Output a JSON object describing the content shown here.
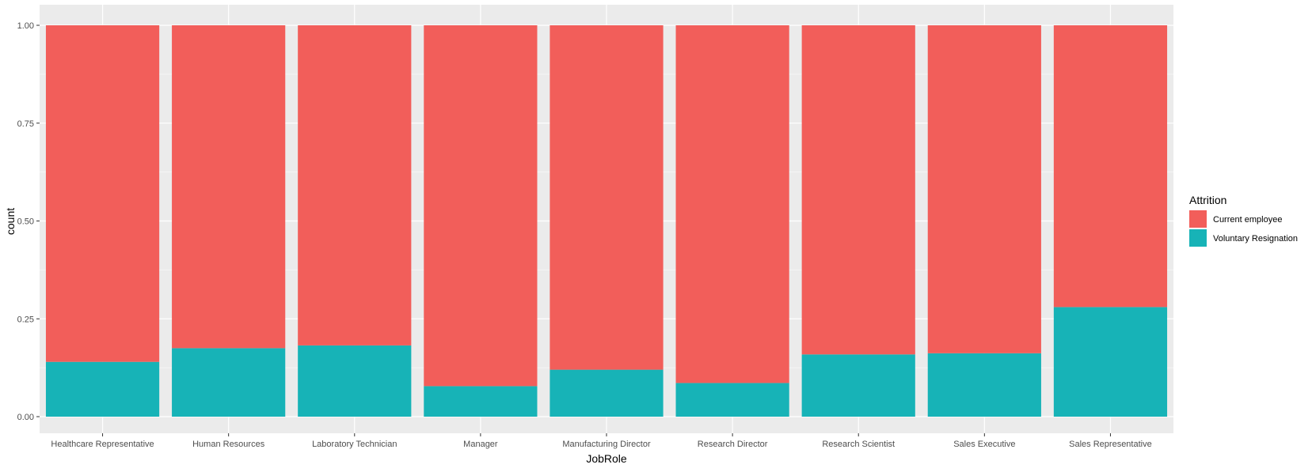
{
  "chart_data": {
    "type": "bar",
    "stacked": "fill",
    "categories": [
      "Healthcare Representative",
      "Human Resources",
      "Laboratory Technician",
      "Manager",
      "Manufacturing Director",
      "Research Director",
      "Research Scientist",
      "Sales Executive",
      "Sales Representative"
    ],
    "series": [
      {
        "name": "Current employee",
        "color": "#F25E5A",
        "values": [
          0.86,
          0.825,
          0.818,
          0.922,
          0.88,
          0.914,
          0.841,
          0.838,
          0.72
        ]
      },
      {
        "name": "Voluntary Resignation",
        "color": "#17B3B7",
        "values": [
          0.14,
          0.175,
          0.182,
          0.078,
          0.12,
          0.086,
          0.159,
          0.162,
          0.28
        ]
      }
    ],
    "xlabel": "JobRole",
    "ylabel": "count",
    "ylim": [
      0,
      1
    ],
    "yticks": [
      "0.00",
      "0.25",
      "0.50",
      "0.75",
      "1.00"
    ],
    "legend": {
      "title": "Attrition",
      "position": "right"
    },
    "grid": true
  }
}
